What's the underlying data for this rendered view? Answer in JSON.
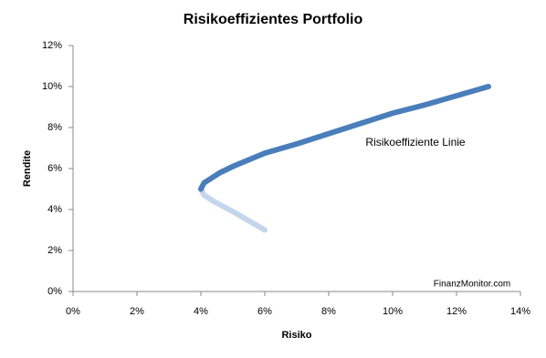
{
  "chart_data": {
    "type": "line",
    "title": "Risikoeffizientes Portfolio",
    "x_label": "Risiko",
    "y_label": "Rendite",
    "annotations": [
      "Risikoeffiziente Linie",
      "FinanzMonitor.com"
    ],
    "series": [
      {
        "color": "#c5d5ec",
        "x": [
          4,
          4.1,
          4.4,
          5,
          5.5,
          6
        ],
        "values": [
          5,
          4.7,
          4.4,
          3.9,
          3.45,
          3.0
        ]
      },
      {
        "color": "#4a7ebb",
        "x": [
          4,
          4.1,
          4.3,
          4.6,
          5,
          6,
          7,
          8,
          9,
          10,
          11,
          12,
          13
        ],
        "values": [
          5,
          5.3,
          5.5,
          5.8,
          6.1,
          6.75,
          7.2,
          7.7,
          8.2,
          8.7,
          9.1,
          9.55,
          10
        ]
      }
    ],
    "xlim": [
      0,
      14
    ],
    "xticks": [
      {
        "value": 0,
        "label": "0%"
      },
      {
        "value": 2,
        "label": "2%"
      },
      {
        "value": 4,
        "label": "4%"
      },
      {
        "value": 6,
        "label": "6%"
      },
      {
        "value": 8,
        "label": "8%"
      },
      {
        "value": 10,
        "label": "10%"
      },
      {
        "value": 12,
        "label": "12%"
      },
      {
        "value": 14,
        "label": "14%"
      }
    ],
    "ylim": [
      0,
      12
    ],
    "yticks": [
      {
        "value": 0,
        "label": "0%"
      },
      {
        "value": 2,
        "label": "2%"
      },
      {
        "value": 4,
        "label": "4%"
      },
      {
        "value": 6,
        "label": "6%"
      },
      {
        "value": 8,
        "label": "8%"
      },
      {
        "value": 10,
        "label": "10%"
      },
      {
        "value": 12,
        "label": "12%"
      }
    ],
    "grid": false
  }
}
